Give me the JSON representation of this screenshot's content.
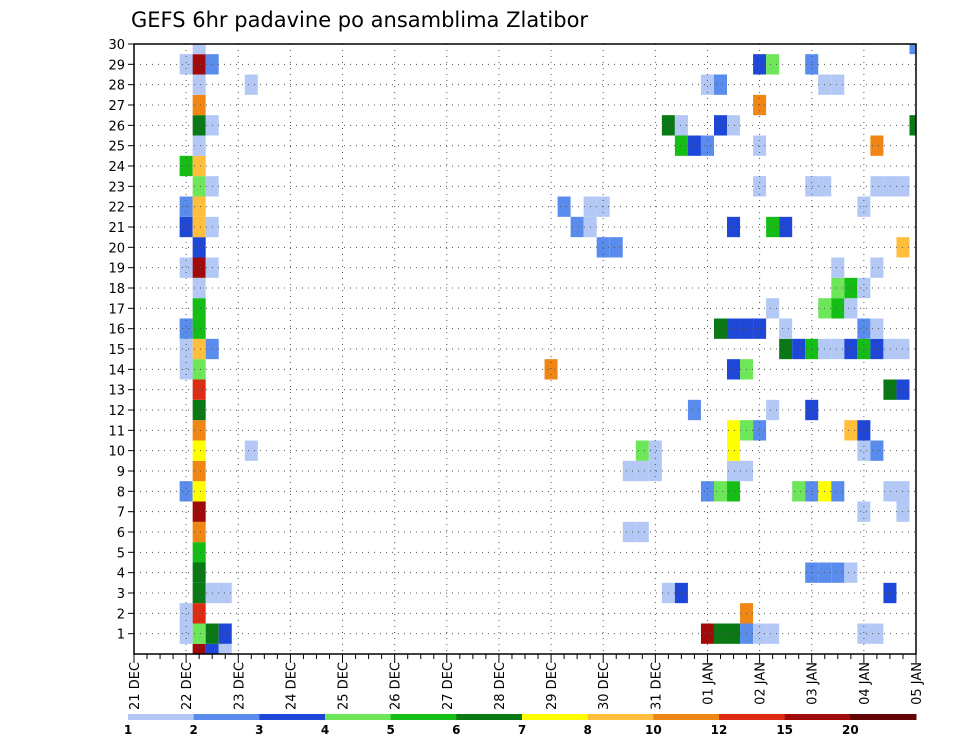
{
  "chart_data": {
    "type": "heatmap",
    "title": "GEFS 6hr padavine po ansamblima Zlatibor",
    "xlabel": "",
    "ylabel": "",
    "x_tick_labels": [
      "21 DEC",
      "22 DEC",
      "23 DEC",
      "24 DEC",
      "25 DEC",
      "26 DEC",
      "27 DEC",
      "28 DEC",
      "29 DEC",
      "30 DEC",
      "31 DEC",
      "01 JAN",
      "02 JAN",
      "03 JAN",
      "04 JAN",
      "05 JAN"
    ],
    "x_unit": "6-hour step (4 steps per day)",
    "x_range": [
      0,
      60
    ],
    "y_tick_labels": [
      "1",
      "2",
      "3",
      "4",
      "5",
      "6",
      "7",
      "8",
      "9",
      "10",
      "11",
      "12",
      "13",
      "14",
      "15",
      "16",
      "17",
      "18",
      "19",
      "20",
      "21",
      "22",
      "23",
      "24",
      "25",
      "26",
      "27",
      "28",
      "29",
      "30"
    ],
    "y_range": [
      0,
      30
    ],
    "grid": true,
    "legend": {
      "placement": "bottom",
      "thresholds": [
        "1",
        "2",
        "3",
        "4",
        "5",
        "6",
        "7",
        "8",
        "10",
        "12",
        "15",
        "20"
      ],
      "colors": [
        "#b4c8f5",
        "#5a8ced",
        "#1e46d7",
        "#6ee65a",
        "#14be14",
        "#0a7814",
        "#ffff00",
        "#ffbe3c",
        "#f08714",
        "#dc2d14",
        "#a00a0a",
        "#640505"
      ]
    },
    "cells": [
      [
        5,
        0,
        10
      ],
      [
        6,
        0,
        2
      ],
      [
        7,
        0,
        0
      ],
      [
        4,
        1,
        0
      ],
      [
        5,
        1,
        3
      ],
      [
        6,
        1,
        5
      ],
      [
        7,
        1,
        2
      ],
      [
        44,
        1,
        10
      ],
      [
        45,
        1,
        5
      ],
      [
        46,
        1,
        5
      ],
      [
        47,
        1,
        1
      ],
      [
        48,
        1,
        0
      ],
      [
        49,
        1,
        0
      ],
      [
        56,
        1,
        0
      ],
      [
        57,
        1,
        0
      ],
      [
        4,
        2,
        0
      ],
      [
        5,
        2,
        9
      ],
      [
        47,
        2,
        8
      ],
      [
        5,
        3,
        5
      ],
      [
        6,
        3,
        0
      ],
      [
        7,
        3,
        0
      ],
      [
        41,
        3,
        0
      ],
      [
        42,
        3,
        2
      ],
      [
        58,
        3,
        2
      ],
      [
        5,
        4,
        5
      ],
      [
        52,
        4,
        1
      ],
      [
        53,
        4,
        1
      ],
      [
        54,
        4,
        1
      ],
      [
        55,
        4,
        0
      ],
      [
        5,
        5,
        4
      ],
      [
        5,
        6,
        8
      ],
      [
        38,
        6,
        0
      ],
      [
        39,
        6,
        0
      ],
      [
        5,
        7,
        10
      ],
      [
        56,
        7,
        0
      ],
      [
        59,
        7,
        0
      ],
      [
        4,
        8,
        1
      ],
      [
        5,
        8,
        6
      ],
      [
        44,
        8,
        1
      ],
      [
        45,
        8,
        3
      ],
      [
        46,
        8,
        4
      ],
      [
        51,
        8,
        3
      ],
      [
        52,
        8,
        1
      ],
      [
        53,
        8,
        6
      ],
      [
        54,
        8,
        1
      ],
      [
        58,
        8,
        0
      ],
      [
        59,
        8,
        0
      ],
      [
        5,
        9,
        8
      ],
      [
        38,
        9,
        0
      ],
      [
        39,
        9,
        0
      ],
      [
        40,
        9,
        0
      ],
      [
        46,
        9,
        0
      ],
      [
        47,
        9,
        0
      ],
      [
        5,
        10,
        6
      ],
      [
        9,
        10,
        0
      ],
      [
        39,
        10,
        3
      ],
      [
        40,
        10,
        0
      ],
      [
        46,
        10,
        6
      ],
      [
        56,
        10,
        0
      ],
      [
        57,
        10,
        1
      ],
      [
        5,
        11,
        8
      ],
      [
        46,
        11,
        6
      ],
      [
        47,
        11,
        3
      ],
      [
        48,
        11,
        1
      ],
      [
        55,
        11,
        7
      ],
      [
        56,
        11,
        2
      ],
      [
        5,
        12,
        5
      ],
      [
        43,
        12,
        1
      ],
      [
        49,
        12,
        0
      ],
      [
        52,
        12,
        2
      ],
      [
        5,
        13,
        9
      ],
      [
        58,
        13,
        5
      ],
      [
        59,
        13,
        2
      ],
      [
        4,
        14,
        0
      ],
      [
        5,
        14,
        3
      ],
      [
        32,
        14,
        8
      ],
      [
        46,
        14,
        2
      ],
      [
        47,
        14,
        3
      ],
      [
        4,
        15,
        0
      ],
      [
        5,
        15,
        7
      ],
      [
        6,
        15,
        1
      ],
      [
        50,
        15,
        5
      ],
      [
        51,
        15,
        2
      ],
      [
        52,
        15,
        4
      ],
      [
        53,
        15,
        0
      ],
      [
        54,
        15,
        0
      ],
      [
        55,
        15,
        2
      ],
      [
        56,
        15,
        4
      ],
      [
        57,
        15,
        2
      ],
      [
        58,
        15,
        0
      ],
      [
        59,
        15,
        0
      ],
      [
        4,
        16,
        1
      ],
      [
        5,
        16,
        4
      ],
      [
        45,
        16,
        5
      ],
      [
        46,
        16,
        2
      ],
      [
        47,
        16,
        2
      ],
      [
        48,
        16,
        2
      ],
      [
        50,
        16,
        0
      ],
      [
        56,
        16,
        1
      ],
      [
        57,
        16,
        0
      ],
      [
        5,
        17,
        4
      ],
      [
        49,
        17,
        0
      ],
      [
        53,
        17,
        3
      ],
      [
        54,
        17,
        4
      ],
      [
        55,
        17,
        0
      ],
      [
        5,
        18,
        0
      ],
      [
        54,
        18,
        3
      ],
      [
        55,
        18,
        4
      ],
      [
        56,
        18,
        0
      ],
      [
        4,
        19,
        0
      ],
      [
        5,
        19,
        10
      ],
      [
        6,
        19,
        0
      ],
      [
        54,
        19,
        0
      ],
      [
        57,
        19,
        0
      ],
      [
        5,
        20,
        2
      ],
      [
        36,
        20,
        1
      ],
      [
        37,
        20,
        1
      ],
      [
        59,
        20,
        7
      ],
      [
        4,
        21,
        2
      ],
      [
        5,
        21,
        7
      ],
      [
        6,
        21,
        0
      ],
      [
        34,
        21,
        1
      ],
      [
        35,
        21,
        0
      ],
      [
        46,
        21,
        2
      ],
      [
        49,
        21,
        4
      ],
      [
        50,
        21,
        2
      ],
      [
        4,
        22,
        1
      ],
      [
        5,
        22,
        7
      ],
      [
        33,
        22,
        1
      ],
      [
        35,
        22,
        0
      ],
      [
        36,
        22,
        0
      ],
      [
        56,
        22,
        0
      ],
      [
        5,
        23,
        3
      ],
      [
        6,
        23,
        0
      ],
      [
        48,
        23,
        0
      ],
      [
        52,
        23,
        0
      ],
      [
        53,
        23,
        0
      ],
      [
        57,
        23,
        0
      ],
      [
        58,
        23,
        0
      ],
      [
        59,
        23,
        0
      ],
      [
        4,
        24,
        4
      ],
      [
        5,
        24,
        7
      ],
      [
        5,
        25,
        0
      ],
      [
        42,
        25,
        4
      ],
      [
        43,
        25,
        2
      ],
      [
        44,
        25,
        1
      ],
      [
        48,
        25,
        0
      ],
      [
        57,
        25,
        8
      ],
      [
        5,
        26,
        5
      ],
      [
        6,
        26,
        0
      ],
      [
        41,
        26,
        5
      ],
      [
        42,
        26,
        0
      ],
      [
        45,
        26,
        2
      ],
      [
        46,
        26,
        0
      ],
      [
        60,
        26,
        5
      ],
      [
        5,
        27,
        8
      ],
      [
        48,
        27,
        8
      ],
      [
        5,
        28,
        0
      ],
      [
        9,
        28,
        0
      ],
      [
        44,
        28,
        0
      ],
      [
        45,
        28,
        1
      ],
      [
        53,
        28,
        0
      ],
      [
        54,
        28,
        0
      ],
      [
        4,
        29,
        0
      ],
      [
        5,
        29,
        10
      ],
      [
        6,
        29,
        1
      ],
      [
        48,
        29,
        2
      ],
      [
        49,
        29,
        3
      ],
      [
        52,
        29,
        1
      ],
      [
        5,
        30,
        0
      ],
      [
        60,
        30,
        1
      ]
    ]
  }
}
